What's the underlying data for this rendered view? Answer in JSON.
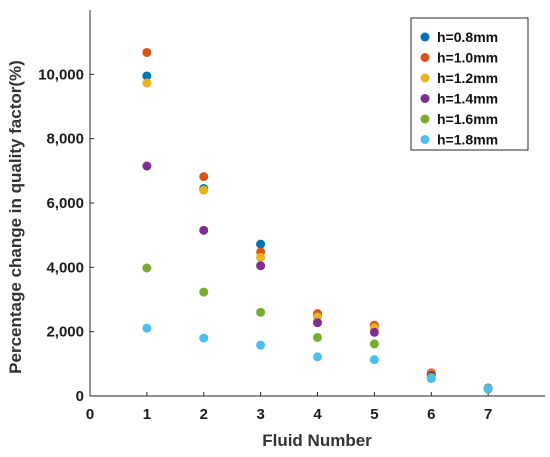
{
  "chart_data": {
    "type": "scatter",
    "title": "",
    "xlabel": "Fluid Number",
    "ylabel": "Percentage change in quality factor(%)",
    "xlim": [
      0,
      8
    ],
    "ylim": [
      0,
      12000
    ],
    "xticks": [
      0,
      1,
      2,
      3,
      4,
      5,
      6,
      7
    ],
    "yticks": [
      0,
      2000,
      4000,
      6000,
      8000,
      10000
    ],
    "ytick_labels": [
      "0",
      "2,000",
      "4,000",
      "6,000",
      "8,000",
      "10,000"
    ],
    "grid": false,
    "legend_position": "top-right",
    "x": [
      1,
      2,
      3,
      4,
      5,
      6,
      7
    ],
    "series": [
      {
        "name": "h=0.8mm",
        "color": "#0072BD",
        "values": [
          9950,
          6450,
          4720,
          2520,
          2150,
          700,
          250
        ]
      },
      {
        "name": "h=1.0mm",
        "color": "#D95319",
        "values": [
          10680,
          6820,
          4480,
          2560,
          2200,
          720,
          240
        ]
      },
      {
        "name": "h=1.2mm",
        "color": "#EDB120",
        "values": [
          9730,
          6400,
          4310,
          2460,
          2120,
          680,
          230
        ]
      },
      {
        "name": "h=1.4mm",
        "color": "#7E2F8E",
        "values": [
          7150,
          5150,
          4050,
          2280,
          1980,
          650,
          220
        ]
      },
      {
        "name": "h=1.6mm",
        "color": "#77AC30",
        "values": [
          3980,
          3230,
          2600,
          1820,
          1620,
          580,
          210
        ]
      },
      {
        "name": "h=1.8mm",
        "color": "#4DBEEE",
        "values": [
          2110,
          1800,
          1580,
          1220,
          1130,
          540,
          230
        ]
      }
    ]
  }
}
